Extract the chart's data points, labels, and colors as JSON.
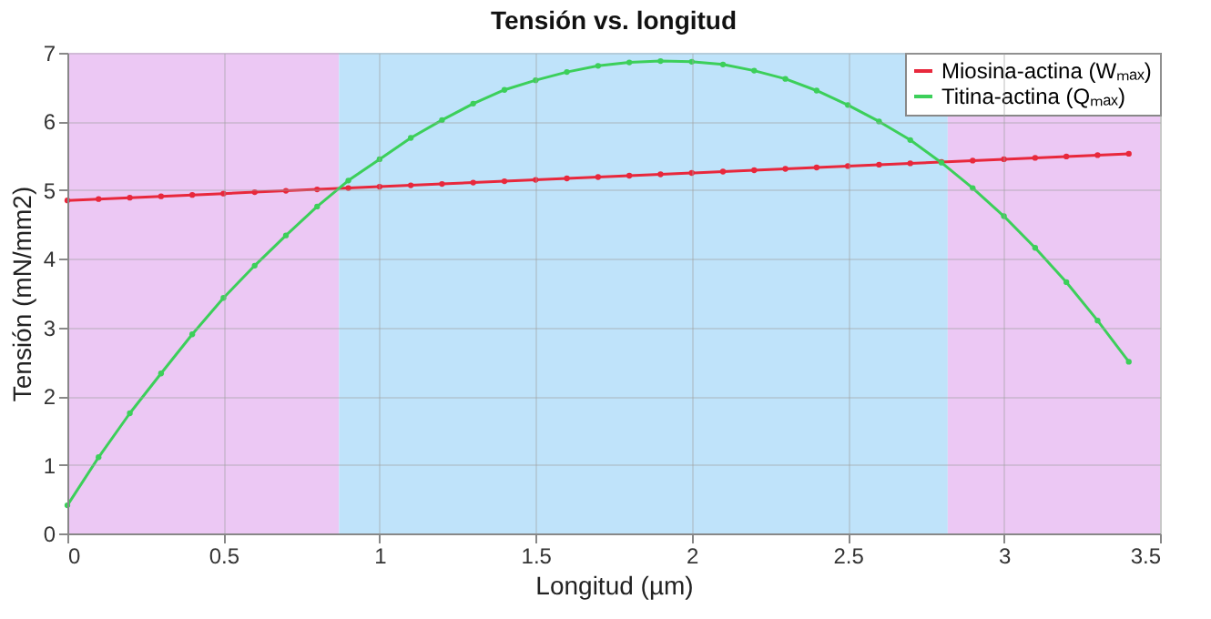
{
  "chart_data": {
    "type": "line",
    "title": "Tensión vs. longitud",
    "xlabel": "Longitud (µm)",
    "ylabel": "Tensión (mN/mm2)",
    "x": [
      0,
      0.1,
      0.2,
      0.3,
      0.4,
      0.5,
      0.6,
      0.7,
      0.8,
      0.9,
      1.0,
      1.1,
      1.2,
      1.3,
      1.4,
      1.5,
      1.6,
      1.7,
      1.8,
      1.9,
      2.0,
      2.1,
      2.2,
      2.3,
      2.4,
      2.5,
      2.6,
      2.7,
      2.8,
      2.9,
      3.0,
      3.1,
      3.2,
      3.3,
      3.4
    ],
    "series": [
      {
        "name": "Miosina-actina (Wₘₐₓ)",
        "color": "#e8283c",
        "values": [
          4.85,
          4.87,
          4.89,
          4.91,
          4.93,
          4.95,
          4.97,
          4.99,
          5.01,
          5.03,
          5.05,
          5.07,
          5.09,
          5.11,
          5.13,
          5.15,
          5.17,
          5.19,
          5.21,
          5.23,
          5.25,
          5.27,
          5.29,
          5.31,
          5.33,
          5.35,
          5.37,
          5.39,
          5.41,
          5.43,
          5.45,
          5.47,
          5.49,
          5.51,
          5.53
        ]
      },
      {
        "name": "Titina-actina (Qₘₐₓ)",
        "color": "#3ccf5a",
        "values": [
          0.41,
          1.11,
          1.75,
          2.33,
          2.9,
          3.43,
          3.9,
          4.34,
          4.76,
          5.14,
          5.45,
          5.76,
          6.02,
          6.26,
          6.46,
          6.6,
          6.72,
          6.81,
          6.86,
          6.88,
          6.87,
          6.83,
          6.74,
          6.62,
          6.45,
          6.24,
          6.0,
          5.73,
          5.4,
          5.03,
          4.62,
          4.16,
          3.66,
          3.1,
          2.5
        ]
      }
    ],
    "xlim": [
      0,
      3.5
    ],
    "ylim": [
      0,
      7
    ],
    "xticks": [
      0,
      0.5,
      1,
      1.5,
      2,
      2.5,
      3,
      3.5
    ],
    "yticks": [
      0,
      1,
      2,
      3,
      4,
      5,
      6,
      7
    ],
    "bands": [
      {
        "axis": "x",
        "from": 0,
        "to": 0.87,
        "color": "#ecc8f4"
      },
      {
        "axis": "x",
        "from": 0.87,
        "to": 2.82,
        "color": "#bfe3fa"
      },
      {
        "axis": "x",
        "from": 2.82,
        "to": 3.5,
        "color": "#ecc8f4"
      }
    ],
    "grid": true,
    "legend": "top right",
    "marker": "circle",
    "line_style": "solid"
  }
}
